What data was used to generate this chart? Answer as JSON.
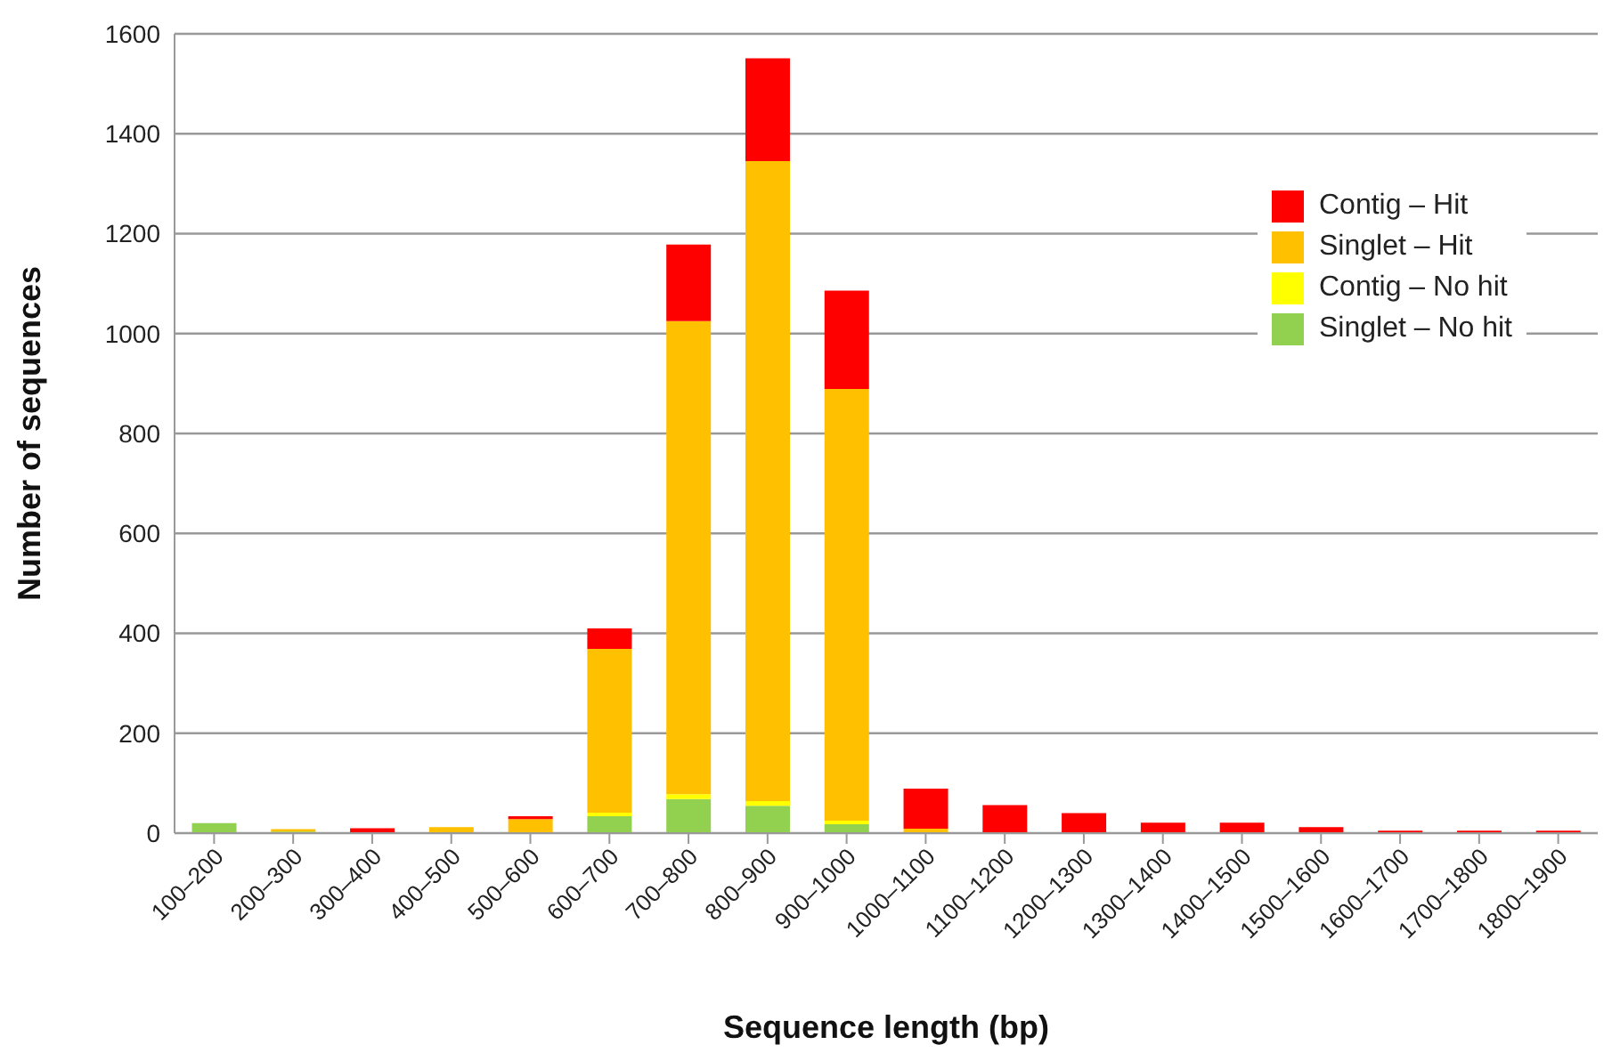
{
  "chart_data": {
    "type": "bar",
    "stacked": true,
    "xlabel": "Sequence length (bp)",
    "ylabel": "Number of sequences",
    "categories": [
      "100–200",
      "200–300",
      "300–400",
      "400–500",
      "500–600",
      "600–700",
      "700–800",
      "800–900",
      "900–1000",
      "1000–1100",
      "1100–1200",
      "1200–1300",
      "1300–1400",
      "1400–1500",
      "1500–1600",
      "1600–1700",
      "1700–1800",
      "1800–1900"
    ],
    "series": [
      {
        "name": "Singlet – No hit",
        "color": "#92d050",
        "values": [
          20,
          3,
          0,
          0,
          0,
          34,
          68,
          55,
          18,
          0,
          0,
          0,
          0,
          0,
          0,
          0,
          0,
          0
        ]
      },
      {
        "name": "Contig – No hit",
        "color": "#ffff00",
        "values": [
          0,
          0,
          0,
          null,
          0,
          7,
          10,
          9,
          7,
          0,
          0,
          0,
          0,
          0,
          0,
          0,
          0,
          0
        ]
      },
      {
        "name": "Singlet – Hit",
        "color": "#ffc000",
        "values": [
          0,
          5,
          null,
          12,
          28,
          328,
          947,
          1281,
          864,
          9,
          0,
          0,
          0,
          0,
          0,
          0,
          0,
          0
        ]
      },
      {
        "name": "Contig – Hit",
        "color": "#ff0000",
        "values": [
          0,
          0,
          10,
          0,
          6,
          41,
          153,
          206,
          197,
          80,
          56,
          40,
          21,
          21,
          12,
          5,
          5,
          5
        ]
      }
    ],
    "ylim": [
      0,
      1600
    ],
    "yticks": [
      0,
      200,
      400,
      600,
      800,
      1000,
      1200,
      1400,
      1600
    ],
    "grid": "y",
    "legend": "top right"
  }
}
